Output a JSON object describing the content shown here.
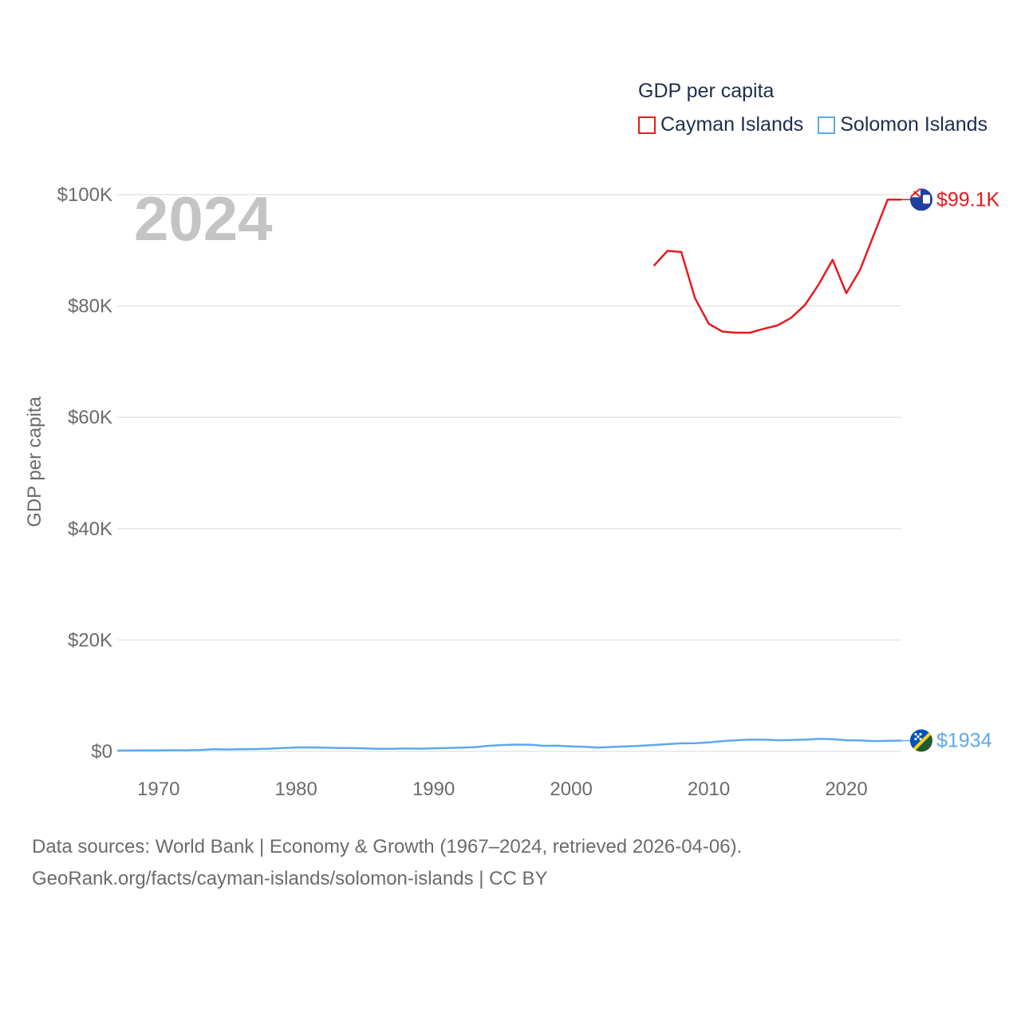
{
  "legend": {
    "title": "GDP per capita",
    "items": [
      {
        "label": "Cayman Islands",
        "color": "#e8191e"
      },
      {
        "label": "Solomon Islands",
        "color": "#5ea8ec"
      }
    ]
  },
  "footer": {
    "line1": "Data sources: World Bank | Economy & Growth (1967–2024, retrieved 2026-04-06).",
    "line2": "GeoRank.org/facts/cayman-islands/solomon-islands | CC BY"
  },
  "chart_data": {
    "type": "line",
    "title": "",
    "xlabel": "",
    "ylabel": "GDP per capita",
    "year_label": "2024",
    "xlim": [
      1967,
      2024
    ],
    "ylim": [
      0,
      100000
    ],
    "x_ticks": [
      "1970",
      "1980",
      "1990",
      "2000",
      "2010",
      "2020"
    ],
    "y_ticks": [
      {
        "value": 0,
        "label": "$0"
      },
      {
        "value": 20000,
        "label": "$20K"
      },
      {
        "value": 40000,
        "label": "$40K"
      },
      {
        "value": 60000,
        "label": "$60K"
      },
      {
        "value": 80000,
        "label": "$80K"
      },
      {
        "value": 100000,
        "label": "$100K"
      }
    ],
    "grid": true,
    "series": [
      {
        "name": "Cayman Islands",
        "color": "#e8191e",
        "end_label": "$99.1K",
        "flag_icon": "cayman-islands-flag-icon",
        "x": [
          2006,
          2007,
          2008,
          2009,
          2010,
          2011,
          2012,
          2013,
          2014,
          2015,
          2016,
          2017,
          2018,
          2019,
          2020,
          2021,
          2022,
          2023,
          2024
        ],
        "values": [
          87200,
          89900,
          89700,
          81400,
          76800,
          75400,
          75200,
          75200,
          75900,
          76500,
          77900,
          80200,
          83900,
          88300,
          82300,
          86500,
          92800,
          99100,
          99100
        ]
      },
      {
        "name": "Solomon Islands",
        "color": "#5ea8ec",
        "end_label": "$1934",
        "flag_icon": "solomon-islands-flag-icon",
        "x": [
          1967,
          1968,
          1969,
          1970,
          1971,
          1972,
          1973,
          1974,
          1975,
          1976,
          1977,
          1978,
          1979,
          1980,
          1981,
          1982,
          1983,
          1984,
          1985,
          1986,
          1987,
          1988,
          1989,
          1990,
          1991,
          1992,
          1993,
          1994,
          1995,
          1996,
          1997,
          1998,
          1999,
          2000,
          2001,
          2002,
          2003,
          2004,
          2005,
          2006,
          2007,
          2008,
          2009,
          2010,
          2011,
          2012,
          2013,
          2014,
          2015,
          2016,
          2017,
          2018,
          2019,
          2020,
          2021,
          2022,
          2023,
          2024
        ],
        "values": [
          150,
          160,
          170,
          190,
          220,
          200,
          250,
          380,
          350,
          380,
          420,
          480,
          620,
          700,
          720,
          680,
          620,
          600,
          540,
          460,
          470,
          520,
          480,
          560,
          600,
          680,
          760,
          1000,
          1150,
          1220,
          1200,
          1000,
          1020,
          900,
          820,
          680,
          800,
          900,
          1000,
          1150,
          1300,
          1450,
          1480,
          1600,
          1850,
          2000,
          2100,
          2100,
          2000,
          2050,
          2100,
          2250,
          2180,
          2000,
          1980,
          1850,
          1900,
          1934
        ]
      }
    ]
  }
}
